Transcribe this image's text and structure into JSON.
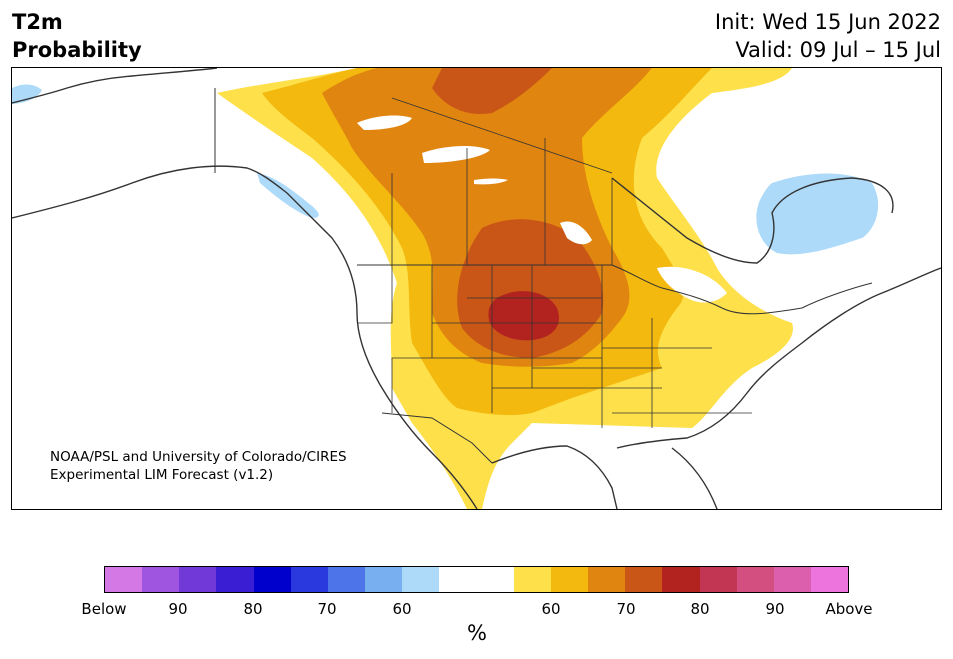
{
  "title": {
    "variable": "T2m",
    "product": "Probability"
  },
  "header": {
    "init": "Init: Wed 15 Jun 2022",
    "valid": "Valid: 09 Jul – 15 Jul"
  },
  "credit": {
    "line1": "NOAA/PSL and University of Colorado/CIRES",
    "line2": "Experimental LIM Forecast (v1.2)"
  },
  "colorbar": {
    "colors": [
      "#d478e6",
      "#9f55e0",
      "#7039d8",
      "#3a1ed3",
      "#0000cd",
      "#2a39dd",
      "#4d74e9",
      "#78aff0",
      "#addaf9",
      "#ffffff",
      "#ffffff",
      "#fee04a",
      "#f3b90e",
      "#e08610",
      "#c95617",
      "#b2231f",
      "#c23653",
      "#d24f7f",
      "#dc5fae",
      "#ec74dc"
    ],
    "ticks": [
      "Below",
      "90",
      "80",
      "70",
      "60",
      "60",
      "70",
      "80",
      "90",
      "Above"
    ],
    "unit": "%"
  }
}
